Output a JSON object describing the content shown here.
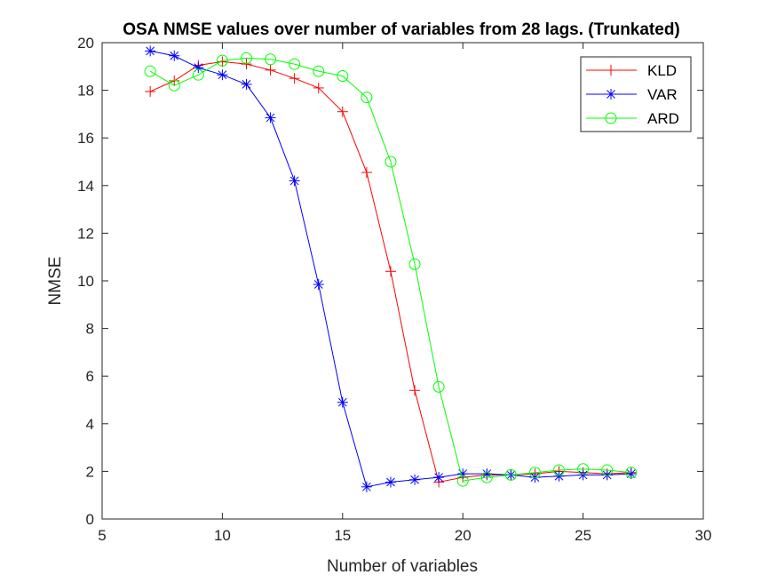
{
  "chart_data": {
    "type": "line",
    "title": "OSA NMSE values over number of variables from 28 lags. (Trunkated)",
    "xlabel": "Number of variables",
    "ylabel": "NMSE",
    "xlim": [
      5,
      30
    ],
    "ylim": [
      0,
      20
    ],
    "xticks": [
      5,
      10,
      15,
      20,
      25,
      30
    ],
    "yticks": [
      0,
      2,
      4,
      6,
      8,
      10,
      12,
      14,
      16,
      18,
      20
    ],
    "grid": false,
    "legend_position": "top-right",
    "x": [
      7,
      8,
      9,
      10,
      11,
      12,
      13,
      14,
      15,
      16,
      17,
      18,
      19,
      20,
      21,
      22,
      23,
      24,
      25,
      26,
      27
    ],
    "series": [
      {
        "name": "KLD",
        "color": "#ff0000",
        "marker": "plus",
        "values": [
          17.95,
          18.4,
          19.05,
          19.2,
          19.1,
          18.85,
          18.5,
          18.1,
          17.1,
          14.55,
          10.4,
          5.4,
          1.55,
          1.75,
          1.85,
          1.85,
          1.9,
          2.0,
          1.95,
          1.9,
          1.95
        ]
      },
      {
        "name": "VAR",
        "color": "#0000ff",
        "marker": "asterisk",
        "values": [
          19.65,
          19.45,
          18.95,
          18.65,
          18.25,
          16.85,
          14.2,
          9.85,
          4.9,
          1.35,
          1.55,
          1.65,
          1.75,
          1.9,
          1.9,
          1.85,
          1.75,
          1.8,
          1.85,
          1.85,
          1.9
        ]
      },
      {
        "name": "ARD",
        "color": "#00ff00",
        "marker": "circle",
        "values": [
          18.8,
          18.2,
          18.65,
          19.25,
          19.35,
          19.3,
          19.1,
          18.8,
          18.6,
          17.7,
          15.0,
          10.7,
          5.55,
          1.6,
          1.75,
          1.85,
          1.95,
          2.05,
          2.1,
          2.05,
          1.95
        ]
      }
    ]
  }
}
